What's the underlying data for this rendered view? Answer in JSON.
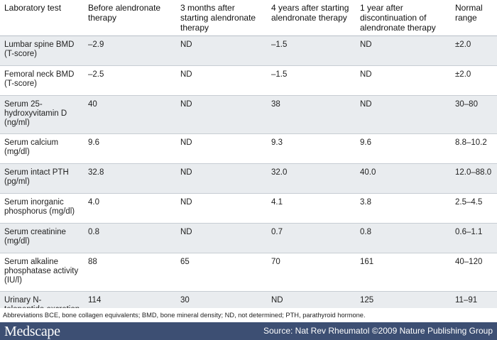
{
  "table": {
    "headers": [
      "Laboratory test",
      "Before alendronate therapy",
      "3 months after starting alendronate therapy",
      "4 years after starting alendronate therapy",
      "1 year after discontinuation of alendronate therapy",
      "Normal range"
    ],
    "rows": [
      [
        "Lumbar spine BMD (T-score)",
        "–2.9",
        "ND",
        "–1.5",
        "ND",
        "±2.0"
      ],
      [
        "Femoral neck BMD (T-score)",
        "–2.5",
        "ND",
        "–1.5",
        "ND",
        "±2.0"
      ],
      [
        "Serum 25-hydroxyvitamin D (ng/ml)",
        "40",
        "ND",
        "38",
        "ND",
        "30–80"
      ],
      [
        "Serum calcium (mg/dl)",
        "9.6",
        "ND",
        "9.3",
        "9.6",
        "8.8–10.2"
      ],
      [
        "Serum intact PTH (pg/ml)",
        "32.8",
        "ND",
        "32.0",
        "40.0",
        "12.0–88.0"
      ],
      [
        "Serum inorganic phosphorus (mg/dl)",
        "4.0",
        "ND",
        "4.1",
        "3.8",
        "2.5–4.5"
      ],
      [
        "Serum creatinine (mg/dl)",
        "0.8",
        "ND",
        "0.7",
        "0.8",
        "0.6–1.1"
      ],
      [
        "Serum alkaline phosphatase activity (IU/l)",
        "88",
        "65",
        "70",
        "161",
        "40–120"
      ],
      [
        "Urinary N-telopeptide excretion (nM BCE per nM creatinine)",
        "114",
        "30",
        "ND",
        "125",
        "11–91"
      ]
    ]
  },
  "abbreviations": "Abbreviations BCE, bone collagen equivalents; BMD, bone mineral density; ND, not determined; PTH, parathyroid hormone.",
  "footer": {
    "logo": "Medscape",
    "source": "Source: Nat Rev Rheumatol ©2009 Nature Publishing Group"
  },
  "colors": {
    "footer_bg": "#3d4f73",
    "row_shade": "#e9ecef"
  }
}
